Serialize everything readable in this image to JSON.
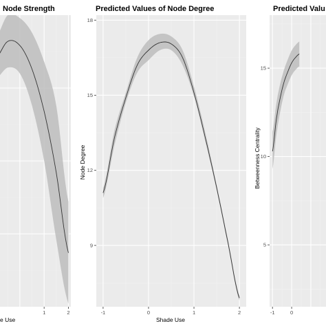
{
  "colors": {
    "panel_bg": "#EBEBEB",
    "grid_major": "#FFFFFF",
    "grid_minor": "#F2F2F2",
    "ribbon": "#BDBDBD",
    "line": "#333333"
  },
  "chart_data": [
    {
      "type": "line",
      "title": "Node Strength",
      "xlabel": "e Use",
      "ylabel": "",
      "xlim": [
        -1.1,
        2.1
      ],
      "ylim": [
        0,
        10
      ],
      "grid": true,
      "x_ticks": [
        1,
        2
      ],
      "x_tick_labels": [
        "1",
        "2"
      ],
      "y_ticks": [],
      "y_tick_labels": [],
      "series": [
        {
          "x": [
            -1.0,
            -0.5,
            0.0,
            0.5,
            1.0,
            1.5,
            2.0
          ],
          "y": [
            8.5,
            9.1,
            8.96,
            8.15,
            6.7,
            4.6,
            1.85
          ],
          "lower": [
            7.8,
            8.2,
            8.0,
            6.9,
            5.0,
            2.3,
            0.1
          ],
          "upper": [
            9.2,
            10.0,
            9.9,
            9.4,
            8.4,
            6.9,
            3.6
          ]
        }
      ]
    },
    {
      "type": "line",
      "title": "Predicted Values of Node Degree",
      "xlabel": "Shade Use",
      "ylabel": "Node Degree",
      "xlim": [
        -1.15,
        2.15
      ],
      "ylim": [
        6.55,
        18.2
      ],
      "grid": true,
      "x_ticks": [
        -1,
        0,
        1,
        2
      ],
      "x_tick_labels": [
        "-1",
        "0",
        "1",
        "2"
      ],
      "y_ticks": [
        9,
        12,
        15,
        18
      ],
      "y_tick_labels": [
        "9",
        "12",
        "15",
        "18"
      ],
      "series": [
        {
          "x": [
            -1.0,
            -0.75,
            -0.5,
            -0.25,
            0.0,
            0.25,
            0.5,
            0.75,
            1.0,
            1.25,
            1.5,
            1.75,
            2.0
          ],
          "y": [
            11.1,
            13.3,
            14.9,
            16.2,
            16.8,
            17.1,
            17.05,
            16.5,
            15.1,
            13.3,
            11.3,
            9.1,
            6.9
          ],
          "lower": [
            10.9,
            13.0,
            14.7,
            15.9,
            16.4,
            16.8,
            16.8,
            16.2,
            14.95,
            13.15,
            11.2,
            9.0,
            6.8
          ],
          "upper": [
            11.3,
            13.6,
            15.1,
            16.5,
            17.2,
            17.45,
            17.35,
            16.8,
            15.35,
            13.5,
            11.4,
            9.2,
            7.0
          ]
        }
      ]
    },
    {
      "type": "line",
      "title": "Predicted Valu",
      "xlabel": "",
      "ylabel": "Betweenness Centrality",
      "xlim": [
        -1.15,
        2.15
      ],
      "ylim": [
        1.5,
        18.0
      ],
      "grid": true,
      "x_ticks": [
        -1,
        0
      ],
      "x_tick_labels": [
        "-1",
        "0"
      ],
      "y_ticks": [
        5,
        10,
        15
      ],
      "y_tick_labels": [
        "5",
        "10",
        "15"
      ],
      "series": [
        {
          "x": [
            -1.0,
            -0.8,
            -0.6,
            -0.4,
            -0.2,
            0.0,
            0.2,
            0.4
          ],
          "y": [
            10.3,
            12.1,
            13.3,
            14.2,
            14.8,
            15.3,
            15.6,
            15.8
          ],
          "lower": [
            9.3,
            11.2,
            12.5,
            13.5,
            14.1,
            14.6,
            14.9,
            15.1
          ],
          "upper": [
            11.4,
            13.0,
            14.1,
            14.9,
            15.5,
            16.0,
            16.3,
            16.5
          ]
        }
      ]
    }
  ]
}
